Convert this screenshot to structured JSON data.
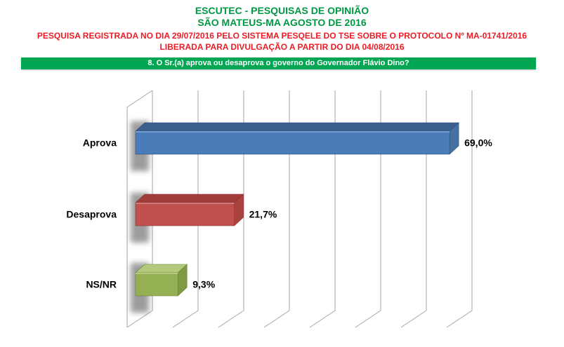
{
  "header": {
    "title_line1": "ESCUTEC - PESQUISAS DE OPINIÃO",
    "title_line2": "SÃO MATEUS-MA AGOSTO DE 2016",
    "registration_line1": "PESQUISA REGISTRADA NO DIA 29/07/2016 PELO SISTEMA PESQELE DO TSE SOBRE O PROTOCOLO Nº MA-01741/2016",
    "registration_line2": "LIBERADA PARA DIVULGAÇÃO A PARTIR DO DIA 04/08/2016",
    "question_banner": "8. O Sr.(a) aprova ou desaprova o governo do Governador Flávio Dino?"
  },
  "colors": {
    "title_green": "#009845",
    "registration_red": "#ed1c24",
    "banner_green": "#00a651",
    "banner_text": "#ffffff",
    "gridline_gray": "#a6a6a6",
    "label_black": "#000000"
  },
  "chart_data": {
    "type": "bar",
    "orientation": "horizontal",
    "style": "3d",
    "title": "",
    "xlabel": "",
    "ylabel": "",
    "categories": [
      "Aprova",
      "Desaprova",
      "NS/NR"
    ],
    "values": [
      69.0,
      21.7,
      9.3
    ],
    "value_labels": [
      "69,0%",
      "21,7%",
      "9,3%"
    ],
    "xlim": [
      0,
      80
    ],
    "gridline_interval": 10,
    "grid": true,
    "legend": false,
    "axis_tick_labels_visible": false,
    "bar_colors": [
      {
        "name": "blue",
        "front": "#4a7cba",
        "top": "#3a5f8f",
        "end": "#46719f",
        "edge": "#2e4f78",
        "highlight": "#86a9d4"
      },
      {
        "name": "red",
        "front": "#c0504d",
        "top": "#a03c3a",
        "end": "#aa423f",
        "edge": "#8c3230",
        "highlight": "#d98a86"
      },
      {
        "name": "green",
        "front": "#94b053",
        "top": "#b3c97c",
        "end": "#7e9a44",
        "edge": "#6d8639",
        "highlight": "#c4d696"
      }
    ]
  }
}
